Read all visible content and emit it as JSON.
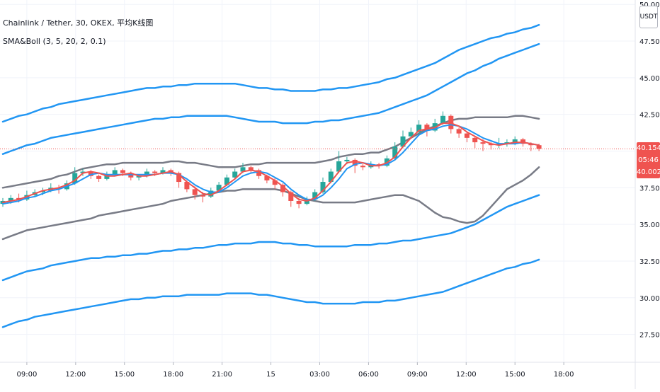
{
  "legend": {
    "symbol": "Chainlink / Tether, 30, OKEX, 平均K线图",
    "indicator": "SMA&Boll (3, 5, 20, 2, 0.1)"
  },
  "price_scale": {
    "currency": "USDT",
    "last_price_label": "40.154",
    "countdown_label": "05:46",
    "indicator_price_label": "40.002"
  },
  "colors": {
    "up": "#26a69a",
    "down": "#ef5350",
    "sma_fast": "#ef5350",
    "sma_slow": "#2196f3",
    "boll_inner": "#787b86",
    "boll_outer": "#2196f3",
    "grid": "#f0f3fa",
    "axis_text": "#131722",
    "last_price_line": "#ef5350"
  },
  "chart_data": {
    "type": "candlestick",
    "title": "Chainlink / Tether, 30, OKEX, 平均K线图",
    "ylim": [
      25.6,
      50.3
    ],
    "y_ticks": [
      "27.500",
      "30.000",
      "32.500",
      "35.000",
      "37.500",
      "40.000",
      "42.500",
      "45.000",
      "47.500",
      "50.000"
    ],
    "x_ticks": [
      "09:00",
      "12:00",
      "15:00",
      "18:00",
      "21:00",
      "15",
      "03:00",
      "06:00",
      "09:00",
      "12:00",
      "15:00",
      "18:00"
    ],
    "last_price": 40.154,
    "candles": [
      [
        36.4,
        36.6,
        36.8,
        36.2
      ],
      [
        36.6,
        36.8,
        37.0,
        36.4
      ],
      [
        36.8,
        36.7,
        37.1,
        36.5
      ],
      [
        36.7,
        37.0,
        37.3,
        36.6
      ],
      [
        37.0,
        37.2,
        37.4,
        36.9
      ],
      [
        37.2,
        37.3,
        37.5,
        37.0
      ],
      [
        37.3,
        37.5,
        37.8,
        37.2
      ],
      [
        37.5,
        37.4,
        37.7,
        37.1
      ],
      [
        37.4,
        37.8,
        38.0,
        37.3
      ],
      [
        37.8,
        38.5,
        38.9,
        37.7
      ],
      [
        38.5,
        38.6,
        38.8,
        38.3
      ],
      [
        38.6,
        38.3,
        38.7,
        38.1
      ],
      [
        38.3,
        38.1,
        38.4,
        37.9
      ],
      [
        38.1,
        38.4,
        38.6,
        38.0
      ],
      [
        38.4,
        38.7,
        38.9,
        38.3
      ],
      [
        38.7,
        38.5,
        38.8,
        38.3
      ],
      [
        38.5,
        38.2,
        38.6,
        38.0
      ],
      [
        38.2,
        38.3,
        38.4,
        38.0
      ],
      [
        38.3,
        38.6,
        38.8,
        38.2
      ],
      [
        38.6,
        38.5,
        38.7,
        38.3
      ],
      [
        38.5,
        38.7,
        38.9,
        38.4
      ],
      [
        38.7,
        38.5,
        38.8,
        38.3
      ],
      [
        38.5,
        37.9,
        38.6,
        37.5
      ],
      [
        37.9,
        37.4,
        38.0,
        37.2
      ],
      [
        37.4,
        37.0,
        37.6,
        36.7
      ],
      [
        37.0,
        36.9,
        37.2,
        36.5
      ],
      [
        36.9,
        37.3,
        37.5,
        36.8
      ],
      [
        37.3,
        37.7,
        37.9,
        37.2
      ],
      [
        37.7,
        38.2,
        38.4,
        37.6
      ],
      [
        38.2,
        38.6,
        38.8,
        38.1
      ],
      [
        38.6,
        38.9,
        39.2,
        38.5
      ],
      [
        38.9,
        38.7,
        39.0,
        38.5
      ],
      [
        38.7,
        38.3,
        38.8,
        38.1
      ],
      [
        38.3,
        38.0,
        38.4,
        37.8
      ],
      [
        38.0,
        37.7,
        38.2,
        37.4
      ],
      [
        37.7,
        37.2,
        37.8,
        36.9
      ],
      [
        37.2,
        36.6,
        37.3,
        36.2
      ],
      [
        36.6,
        36.4,
        36.8,
        36.1
      ],
      [
        36.4,
        36.7,
        36.9,
        36.3
      ],
      [
        36.7,
        37.2,
        37.4,
        36.6
      ],
      [
        37.2,
        37.9,
        38.2,
        37.1
      ],
      [
        37.9,
        38.6,
        38.8,
        37.8
      ],
      [
        38.6,
        39.3,
        40.0,
        38.5
      ],
      [
        39.3,
        39.4,
        39.6,
        39.1
      ],
      [
        39.4,
        39.0,
        39.5,
        38.5
      ],
      [
        39.0,
        38.9,
        39.1,
        38.7
      ],
      [
        38.9,
        39.1,
        39.3,
        38.8
      ],
      [
        39.1,
        39.0,
        39.2,
        38.8
      ],
      [
        39.0,
        39.5,
        39.7,
        38.9
      ],
      [
        39.5,
        40.3,
        40.6,
        39.4
      ],
      [
        40.3,
        41.0,
        41.4,
        40.2
      ],
      [
        41.0,
        41.3,
        41.6,
        40.9
      ],
      [
        41.3,
        41.8,
        42.1,
        41.2
      ],
      [
        41.8,
        41.4,
        41.9,
        41.0
      ],
      [
        41.4,
        41.9,
        42.2,
        41.3
      ],
      [
        41.9,
        42.4,
        42.7,
        41.8
      ],
      [
        42.4,
        41.5,
        42.5,
        41.2
      ],
      [
        41.5,
        41.2,
        41.6,
        40.9
      ],
      [
        41.2,
        40.9,
        41.3,
        40.6
      ],
      [
        40.9,
        40.6,
        41.0,
        40.2
      ],
      [
        40.6,
        40.5,
        40.8,
        40.0
      ],
      [
        40.5,
        40.4,
        40.6,
        40.1
      ],
      [
        40.4,
        40.5,
        40.9,
        40.2
      ],
      [
        40.5,
        40.6,
        40.8,
        40.3
      ],
      [
        40.6,
        40.8,
        41.0,
        40.4
      ],
      [
        40.8,
        40.5,
        40.9,
        40.3
      ],
      [
        40.5,
        40.4,
        40.6,
        40.0
      ],
      [
        40.4,
        40.154,
        40.5,
        40.0
      ]
    ],
    "series": [
      {
        "name": "SMA 3",
        "values": [
          36.5,
          36.6,
          36.7,
          36.9,
          37.1,
          37.3,
          37.4,
          37.5,
          37.7,
          38.0,
          38.5,
          38.6,
          38.5,
          38.3,
          38.3,
          38.4,
          38.5,
          38.3,
          38.3,
          38.4,
          38.5,
          38.6,
          38.4,
          37.9,
          37.5,
          37.1,
          37.0,
          37.3,
          37.7,
          38.1,
          38.6,
          38.7,
          38.6,
          38.3,
          38.0,
          37.6,
          37.1,
          36.7,
          36.6,
          36.8,
          37.3,
          37.9,
          38.6,
          39.2,
          39.3,
          39.2,
          39.0,
          39.0,
          39.2,
          39.6,
          40.3,
          40.9,
          41.4,
          41.5,
          41.6,
          41.9,
          41.9,
          41.7,
          41.3,
          41.0,
          40.7,
          40.5,
          40.4,
          40.5,
          40.6,
          40.6,
          40.5,
          40.4
        ]
      },
      {
        "name": "SMA 5",
        "values": [
          36.4,
          36.5,
          36.6,
          36.8,
          36.9,
          37.1,
          37.3,
          37.4,
          37.6,
          37.8,
          38.1,
          38.4,
          38.5,
          38.4,
          38.4,
          38.4,
          38.4,
          38.4,
          38.4,
          38.4,
          38.5,
          38.5,
          38.4,
          38.1,
          37.7,
          37.4,
          37.2,
          37.2,
          37.5,
          37.9,
          38.3,
          38.5,
          38.6,
          38.5,
          38.2,
          37.9,
          37.4,
          37.0,
          36.7,
          36.7,
          37.0,
          37.5,
          38.1,
          38.8,
          39.1,
          39.2,
          39.1,
          39.0,
          39.1,
          39.4,
          39.9,
          40.5,
          41.1,
          41.4,
          41.5,
          41.7,
          41.8,
          41.7,
          41.5,
          41.2,
          40.9,
          40.7,
          40.5,
          40.5,
          40.5,
          40.6,
          40.5,
          40.4
        ]
      },
      {
        "name": "BB upper (0.1)",
        "values": [
          37.5,
          37.6,
          37.7,
          37.8,
          37.9,
          38.0,
          38.1,
          38.3,
          38.4,
          38.6,
          38.8,
          38.9,
          39.0,
          39.1,
          39.1,
          39.2,
          39.2,
          39.2,
          39.2,
          39.2,
          39.2,
          39.3,
          39.3,
          39.2,
          39.2,
          39.1,
          39.0,
          38.9,
          38.9,
          38.9,
          39.0,
          39.1,
          39.1,
          39.2,
          39.2,
          39.2,
          39.2,
          39.2,
          39.2,
          39.2,
          39.3,
          39.4,
          39.6,
          39.7,
          39.8,
          39.8,
          39.9,
          39.9,
          40.1,
          40.3,
          40.6,
          40.9,
          41.2,
          41.5,
          41.7,
          41.9,
          42.1,
          42.2,
          42.2,
          42.3,
          42.3,
          42.3,
          42.3,
          42.3,
          42.4,
          42.4,
          42.3,
          42.2
        ]
      },
      {
        "name": "BB lower (0.1)",
        "values": [
          34.0,
          34.2,
          34.4,
          34.6,
          34.7,
          34.8,
          34.9,
          35.0,
          35.1,
          35.2,
          35.3,
          35.4,
          35.6,
          35.7,
          35.8,
          35.9,
          36.0,
          36.1,
          36.2,
          36.3,
          36.4,
          36.6,
          36.7,
          36.8,
          36.9,
          37.0,
          37.1,
          37.2,
          37.3,
          37.3,
          37.4,
          37.4,
          37.4,
          37.4,
          37.4,
          37.3,
          37.1,
          36.9,
          36.7,
          36.6,
          36.5,
          36.5,
          36.5,
          36.5,
          36.5,
          36.6,
          36.7,
          36.8,
          36.9,
          37.0,
          37.0,
          36.8,
          36.6,
          36.2,
          35.8,
          35.5,
          35.4,
          35.2,
          35.1,
          35.2,
          35.6,
          36.2,
          36.8,
          37.4,
          37.7,
          38.0,
          38.4,
          38.9
        ]
      },
      {
        "name": "BB upper (2)",
        "values": [
          42.0,
          42.2,
          42.4,
          42.5,
          42.7,
          42.9,
          43.0,
          43.2,
          43.3,
          43.4,
          43.5,
          43.6,
          43.7,
          43.8,
          43.9,
          44.0,
          44.1,
          44.2,
          44.3,
          44.3,
          44.4,
          44.4,
          44.5,
          44.5,
          44.6,
          44.6,
          44.6,
          44.6,
          44.6,
          44.6,
          44.5,
          44.4,
          44.3,
          44.3,
          44.2,
          44.2,
          44.1,
          44.1,
          44.1,
          44.1,
          44.2,
          44.2,
          44.3,
          44.3,
          44.4,
          44.5,
          44.6,
          44.7,
          44.9,
          45.0,
          45.2,
          45.4,
          45.6,
          45.8,
          46.0,
          46.3,
          46.6,
          46.9,
          47.1,
          47.3,
          47.5,
          47.7,
          47.8,
          48.0,
          48.1,
          48.3,
          48.4,
          48.6
        ]
      },
      {
        "name": "BB mid-upper",
        "values": [
          39.8,
          40.0,
          40.2,
          40.4,
          40.5,
          40.7,
          40.9,
          41.0,
          41.1,
          41.2,
          41.3,
          41.4,
          41.5,
          41.6,
          41.7,
          41.8,
          41.9,
          42.0,
          42.1,
          42.2,
          42.2,
          42.3,
          42.3,
          42.4,
          42.4,
          42.4,
          42.4,
          42.4,
          42.4,
          42.3,
          42.2,
          42.1,
          42.0,
          42.0,
          42.0,
          41.9,
          41.9,
          41.9,
          41.9,
          42.0,
          42.0,
          42.1,
          42.1,
          42.2,
          42.3,
          42.4,
          42.5,
          42.6,
          42.8,
          43.0,
          43.2,
          43.4,
          43.6,
          43.8,
          44.1,
          44.4,
          44.7,
          45.0,
          45.3,
          45.5,
          45.8,
          46.0,
          46.3,
          46.5,
          46.7,
          46.9,
          47.1,
          47.3
        ]
      },
      {
        "name": "BB mid-lower",
        "values": [
          31.2,
          31.4,
          31.6,
          31.8,
          31.9,
          32.0,
          32.2,
          32.3,
          32.4,
          32.5,
          32.6,
          32.7,
          32.7,
          32.8,
          32.8,
          32.9,
          32.9,
          33.0,
          33.0,
          33.1,
          33.2,
          33.2,
          33.3,
          33.3,
          33.4,
          33.4,
          33.5,
          33.6,
          33.6,
          33.7,
          33.7,
          33.7,
          33.8,
          33.8,
          33.8,
          33.7,
          33.7,
          33.6,
          33.6,
          33.5,
          33.5,
          33.5,
          33.5,
          33.5,
          33.6,
          33.6,
          33.6,
          33.7,
          33.7,
          33.8,
          33.9,
          33.9,
          34.0,
          34.1,
          34.2,
          34.3,
          34.4,
          34.6,
          34.8,
          35.0,
          35.3,
          35.6,
          35.9,
          36.2,
          36.4,
          36.6,
          36.8,
          37.0
        ]
      },
      {
        "name": "BB lower (2)",
        "values": [
          28.0,
          28.2,
          28.4,
          28.5,
          28.7,
          28.8,
          28.9,
          29.0,
          29.1,
          29.2,
          29.3,
          29.4,
          29.5,
          29.6,
          29.7,
          29.8,
          29.9,
          29.9,
          30.0,
          30.0,
          30.1,
          30.1,
          30.1,
          30.2,
          30.2,
          30.2,
          30.2,
          30.2,
          30.3,
          30.3,
          30.3,
          30.3,
          30.2,
          30.2,
          30.1,
          30.0,
          29.9,
          29.8,
          29.7,
          29.7,
          29.6,
          29.6,
          29.6,
          29.6,
          29.6,
          29.7,
          29.7,
          29.7,
          29.8,
          29.8,
          29.9,
          30.0,
          30.1,
          30.2,
          30.3,
          30.4,
          30.6,
          30.8,
          31.0,
          31.2,
          31.4,
          31.6,
          31.8,
          32.0,
          32.1,
          32.3,
          32.4,
          32.6
        ]
      }
    ]
  }
}
